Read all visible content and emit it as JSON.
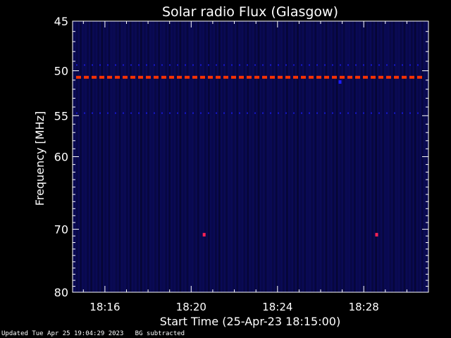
{
  "chart_data": {
    "type": "heatmap",
    "title": "Solar radio Flux (Glasgow)",
    "xlabel": "Start Time (25-Apr-23 18:15:00)",
    "ylabel": "Frequency [MHz]",
    "x_range_minutes": [
      -0.5,
      16.0
    ],
    "x_start": "18:15",
    "x_ticks": [
      {
        "minute": 1,
        "label": "18:16"
      },
      {
        "minute": 5,
        "label": "18:20"
      },
      {
        "minute": 9,
        "label": "18:24"
      },
      {
        "minute": 13,
        "label": "18:28"
      }
    ],
    "y_range_mhz": [
      45,
      80
    ],
    "y_scale": "log",
    "y_ticks": [
      45,
      50,
      55,
      60,
      70,
      80
    ],
    "colormap": [
      "#000000",
      "#0a0a55",
      "#1c1cff",
      "#ff3300"
    ],
    "features": [
      {
        "kind": "band",
        "frequency_mhz": 50.7,
        "intensity": "high",
        "color": "#ff3300"
      },
      {
        "kind": "band",
        "frequency_mhz": 49.4,
        "intensity": "medium",
        "color": "#1c1cff"
      },
      {
        "kind": "band",
        "frequency_mhz": 54.7,
        "intensity": "medium",
        "color": "#1c1cff"
      },
      {
        "kind": "spot",
        "time_minute": 5.6,
        "frequency_mhz": 70.8,
        "intensity": "high",
        "color": "#ff2255"
      },
      {
        "kind": "spot",
        "time_minute": 13.6,
        "frequency_mhz": 70.8,
        "intensity": "high",
        "color": "#ff2255"
      },
      {
        "kind": "spot",
        "time_minute": 11.9,
        "frequency_mhz": 51.2,
        "intensity": "medium",
        "color": "#1c1cff"
      }
    ]
  },
  "footer": {
    "updated": "Updated Tue Apr 25 19:04:29 2023",
    "note": "BG subtracted"
  }
}
